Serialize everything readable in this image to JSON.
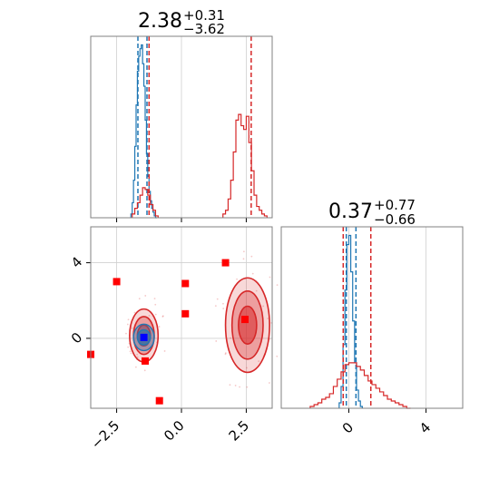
{
  "chart_data": [
    {
      "type": "histogram",
      "panel": "top-left marginal",
      "title": {
        "base": "2.38",
        "sup": "+0.31",
        "sub": "−3.62"
      },
      "xlim": [
        -3.5,
        3.5
      ],
      "grid": true,
      "series": [
        {
          "color": "#1f77b4",
          "bins": [
            -1.95,
            -1.9,
            -1.85,
            -1.8,
            -1.75,
            -1.7,
            -1.65,
            -1.6,
            -1.55,
            -1.5,
            -1.45,
            -1.4,
            -1.35,
            -1.3,
            -1.25,
            -1.2,
            -1.15,
            -1.1,
            -1.05,
            -1.0
          ],
          "heights": [
            0.02,
            0.08,
            0.2,
            0.38,
            0.6,
            0.78,
            0.86,
            0.9,
            0.92,
            0.82,
            0.7,
            0.52,
            0.34,
            0.22,
            0.14,
            0.09,
            0.05,
            0.03,
            0.01,
            0.0
          ],
          "quantiles": [
            -1.68,
            -1.33
          ]
        },
        {
          "color": "#d62728",
          "bins": [
            -1.9,
            -1.8,
            -1.7,
            -1.6,
            -1.5,
            -1.4,
            -1.3,
            -1.2,
            -1.1,
            -1.0,
            1.6,
            1.7,
            1.8,
            1.9,
            2.0,
            2.1,
            2.2,
            2.3,
            2.4,
            2.5,
            2.6,
            2.7,
            2.8,
            2.9,
            3.0,
            3.1,
            3.2
          ],
          "heights": [
            0.02,
            0.05,
            0.08,
            0.12,
            0.16,
            0.15,
            0.12,
            0.07,
            0.04,
            0.01,
            0.02,
            0.04,
            0.1,
            0.2,
            0.35,
            0.52,
            0.55,
            0.49,
            0.47,
            0.54,
            0.4,
            0.25,
            0.12,
            0.06,
            0.04,
            0.02,
            0.01
          ],
          "quantiles": [
            -1.25,
            2.69
          ]
        }
      ]
    },
    {
      "type": "contour-scatter",
      "panel": "bottom-left joint",
      "xlim": [
        -3.5,
        3.5
      ],
      "ylim": [
        -3.7,
        5.9
      ],
      "xticks": [
        "−2.5",
        "0.0",
        "2.5"
      ],
      "yticks": [
        "4",
        "0"
      ],
      "grid": true,
      "series": [
        {
          "color": "#d62728",
          "contours": [
            {
              "center": [
                -1.45,
                0.15
              ],
              "radii_x": [
                0.55,
                0.4,
                0.25
              ],
              "radii_y": [
                1.4,
                1.0,
                0.55
              ]
            },
            {
              "center": [
                2.55,
                0.7
              ],
              "radii_x": [
                0.85,
                0.6,
                0.35
              ],
              "radii_y": [
                2.5,
                1.8,
                1.0
              ]
            }
          ]
        },
        {
          "color": "#1f77b4",
          "contours": [
            {
              "center": [
                -1.45,
                0.05
              ],
              "radii_x": [
                0.4,
                0.25
              ],
              "radii_y": [
                0.7,
                0.4
              ]
            }
          ]
        },
        {
          "name": "markers",
          "color": "#ff0000",
          "points": [
            [
              -2.5,
              3.0
            ],
            [
              1.7,
              4.0
            ],
            [
              0.15,
              2.9
            ],
            [
              0.15,
              1.3
            ],
            [
              -1.4,
              -1.2
            ],
            [
              -0.85,
              -3.3
            ],
            [
              -3.5,
              -0.85
            ],
            [
              2.45,
              1.0
            ]
          ]
        },
        {
          "name": "truth",
          "color": "#0000ff",
          "points": [
            [
              -1.45,
              0.05
            ]
          ]
        }
      ]
    },
    {
      "type": "histogram",
      "panel": "bottom-right marginal",
      "title": {
        "base": "0.37",
        "sup": "+0.77",
        "sub": "−0.66"
      },
      "xlim": [
        -3.5,
        5.9
      ],
      "xticks": [
        "0",
        "4"
      ],
      "grid": true,
      "series": [
        {
          "color": "#1f77b4",
          "bins": [
            -0.5,
            -0.4,
            -0.3,
            -0.2,
            -0.1,
            0.0,
            0.1,
            0.2,
            0.3,
            0.4,
            0.5,
            0.6
          ],
          "heights": [
            0.03,
            0.12,
            0.35,
            0.65,
            0.9,
            0.95,
            0.75,
            0.48,
            0.25,
            0.1,
            0.04,
            0.01
          ],
          "quantiles": [
            -0.13,
            0.37
          ]
        },
        {
          "color": "#d62728",
          "bins": [
            -2.0,
            -1.8,
            -1.6,
            -1.4,
            -1.2,
            -1.0,
            -0.8,
            -0.6,
            -0.4,
            -0.2,
            0.0,
            0.2,
            0.4,
            0.6,
            0.8,
            1.0,
            1.2,
            1.4,
            1.6,
            1.8,
            2.0,
            2.2,
            2.4,
            2.6,
            2.8,
            3.0
          ],
          "heights": [
            0.01,
            0.02,
            0.03,
            0.05,
            0.06,
            0.08,
            0.12,
            0.16,
            0.2,
            0.24,
            0.25,
            0.25,
            0.23,
            0.21,
            0.18,
            0.15,
            0.13,
            0.11,
            0.09,
            0.07,
            0.05,
            0.04,
            0.03,
            0.02,
            0.01,
            0.0
          ],
          "quantiles": [
            -0.29,
            1.14
          ]
        }
      ]
    }
  ]
}
